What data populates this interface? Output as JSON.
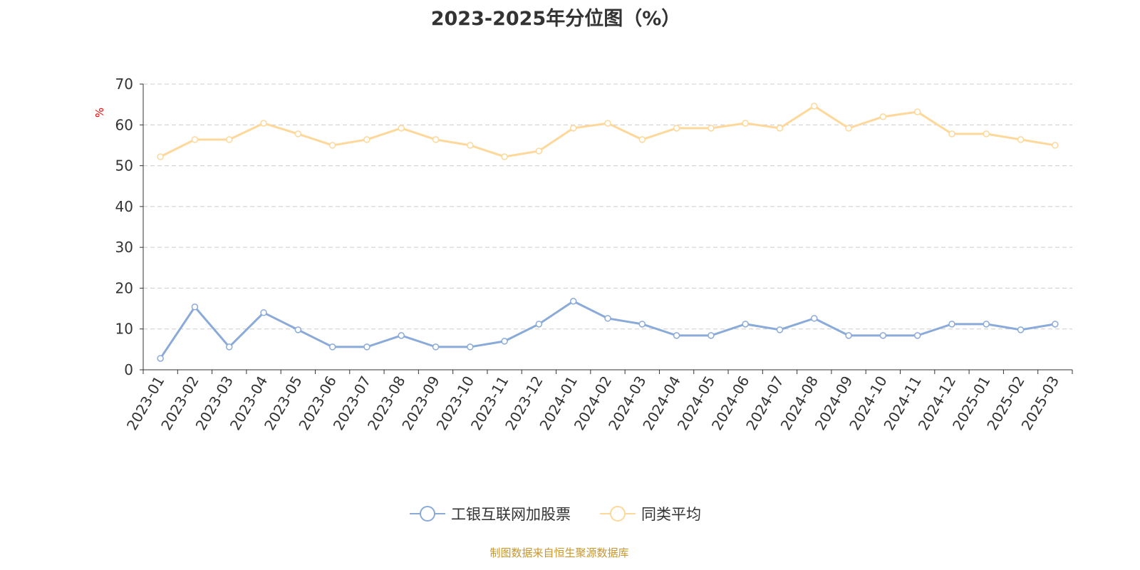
{
  "chart_data": {
    "type": "line",
    "title": "2023-2025年分位图（%）",
    "ylabel": "%",
    "ylim": [
      0,
      70
    ],
    "yticks": [
      0,
      10,
      20,
      30,
      40,
      50,
      60,
      70
    ],
    "grid": true,
    "legend_position": "bottom",
    "categories": [
      "2023-01",
      "2023-02",
      "2023-03",
      "2023-04",
      "2023-05",
      "2023-06",
      "2023-07",
      "2023-08",
      "2023-09",
      "2023-10",
      "2023-11",
      "2023-12",
      "2024-01",
      "2024-02",
      "2024-03",
      "2024-04",
      "2024-05",
      "2024-06",
      "2024-07",
      "2024-08",
      "2024-09",
      "2024-10",
      "2024-11",
      "2024-12",
      "2025-01",
      "2025-02",
      "2025-03"
    ],
    "series": [
      {
        "name": "工银互联网加股票",
        "color": "#8aaad9",
        "values": [
          2.8,
          15.4,
          5.6,
          14.0,
          9.8,
          5.6,
          5.6,
          8.4,
          5.6,
          5.6,
          7.0,
          11.2,
          16.8,
          12.6,
          11.2,
          8.4,
          8.4,
          11.2,
          9.8,
          12.6,
          8.4,
          8.4,
          8.4,
          11.2,
          11.2,
          9.8,
          11.2
        ]
      },
      {
        "name": "同类平均",
        "color": "#fdd89a",
        "values": [
          52.2,
          56.4,
          56.4,
          60.4,
          57.8,
          55.0,
          56.4,
          59.2,
          56.4,
          55.0,
          52.2,
          53.6,
          59.2,
          60.4,
          56.4,
          59.2,
          59.2,
          60.4,
          59.2,
          64.6,
          59.2,
          62.0,
          63.2,
          57.8,
          57.8,
          56.4,
          55.0
        ]
      }
    ]
  },
  "source": "制图数据来自恒生聚源数据库"
}
